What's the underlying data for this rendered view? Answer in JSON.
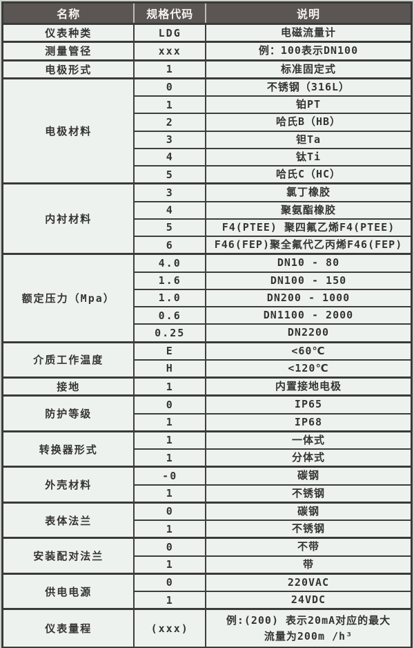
{
  "header": {
    "col1": "名称",
    "col2": "规格代码",
    "col3": "说明"
  },
  "colors": {
    "header_bg": "#5b5553",
    "header_text": "#f4f4f2",
    "cell_bg": "#eef2ef",
    "border": "#3d3d3b",
    "page_bg": "#ccd1cd",
    "text": "#343432"
  },
  "groups": [
    {
      "name": "仪表种类",
      "rows": [
        {
          "code": "LDG",
          "desc": "电磁流量计"
        }
      ]
    },
    {
      "name": "测量管径",
      "rows": [
        {
          "code": "xxx",
          "desc": "例：100表示DN100"
        }
      ]
    },
    {
      "name": "电极形式",
      "rows": [
        {
          "code": "1",
          "desc": "标准固定式"
        }
      ]
    },
    {
      "name": "电极材料",
      "rows": [
        {
          "code": "0",
          "desc": "不锈钢（316L）"
        },
        {
          "code": "1",
          "desc": "铂PT"
        },
        {
          "code": "2",
          "desc": "哈氏B（HB）"
        },
        {
          "code": "3",
          "desc": "钽Ta"
        },
        {
          "code": "4",
          "desc": "钛Ti"
        },
        {
          "code": "5",
          "desc": "哈氏C（HC）"
        }
      ]
    },
    {
      "name": "内衬材料",
      "rows": [
        {
          "code": "3",
          "desc": "氯丁橡胶"
        },
        {
          "code": "4",
          "desc": "聚氨酯橡胶"
        },
        {
          "code": "5",
          "desc": "F4(PTEE) 聚四氟乙烯F4(PTEE)"
        },
        {
          "code": "6",
          "desc": "F46(FEP)聚全氟代乙丙烯F46(FEP)"
        }
      ]
    },
    {
      "name": "额定压力（Mpa）",
      "rows": [
        {
          "code": "4.0",
          "desc": "DN10 - 80"
        },
        {
          "code": "1.6",
          "desc": "DN100 - 150"
        },
        {
          "code": "1.0",
          "desc": "DN200 - 1000"
        },
        {
          "code": "0.6",
          "desc": "DN1100 - 2000"
        },
        {
          "code": "0.25",
          "desc": "DN2200"
        }
      ]
    },
    {
      "name": "介质工作温度",
      "rows": [
        {
          "code": "E",
          "desc": "<60℃"
        },
        {
          "code": "H",
          "desc": "<120℃"
        }
      ]
    },
    {
      "name": "接地",
      "rows": [
        {
          "code": "1",
          "desc": "内置接地电极"
        }
      ]
    },
    {
      "name": "防护等级",
      "rows": [
        {
          "code": "0",
          "desc": "IP65"
        },
        {
          "code": "1",
          "desc": "IP68"
        }
      ]
    },
    {
      "name": "转换器形式",
      "rows": [
        {
          "code": "1",
          "desc": "一体式"
        },
        {
          "code": "1",
          "desc": "分体式"
        }
      ]
    },
    {
      "name": "外壳材料",
      "rows": [
        {
          "code": "-0",
          "desc": "碳钢"
        },
        {
          "code": "1",
          "desc": "不锈钢"
        }
      ]
    },
    {
      "name": "表体法兰",
      "rows": [
        {
          "code": "0",
          "desc": "碳钢"
        },
        {
          "code": "1",
          "desc": "不锈钢"
        }
      ]
    },
    {
      "name": "安装配对法兰",
      "rows": [
        {
          "code": "0",
          "desc": "不带"
        },
        {
          "code": "1",
          "desc": "带"
        }
      ]
    },
    {
      "name": "供电电源",
      "rows": [
        {
          "code": "0",
          "desc": "220VAC"
        },
        {
          "code": "1",
          "desc": "24VDC"
        }
      ]
    },
    {
      "name": "仪表量程",
      "tall": true,
      "rows": [
        {
          "code": "(xxx)",
          "desc": "例:(200) 表示20mA对应的最大\n流量为200m /h³"
        }
      ]
    }
  ]
}
